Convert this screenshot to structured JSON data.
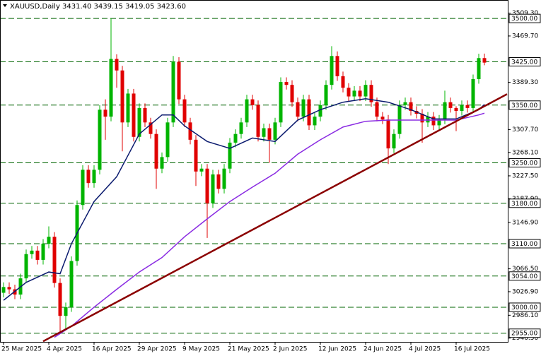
{
  "chart_data": {
    "type": "candlestick",
    "title": "XAUUSD,Daily",
    "subtitle": "3431.40 3439.15 3419.05 3423.60",
    "categories": [
      "25 Mar 2025",
      null,
      null,
      null,
      null,
      null,
      null,
      null,
      "4 Apr 2025",
      null,
      null,
      null,
      null,
      null,
      null,
      null,
      "16 Apr 2025",
      null,
      null,
      null,
      null,
      null,
      null,
      null,
      "29 Apr 2025",
      null,
      null,
      null,
      null,
      null,
      null,
      null,
      "9 May 2025",
      null,
      null,
      null,
      null,
      null,
      null,
      null,
      "21 May 2025",
      null,
      null,
      null,
      null,
      null,
      null,
      null,
      "2 Jun 2025",
      null,
      null,
      null,
      null,
      null,
      null,
      null,
      "12 Jun 2025",
      null,
      null,
      null,
      null,
      null,
      null,
      null,
      "24 Jun 2025",
      null,
      null,
      null,
      null,
      null,
      null,
      null,
      "4 Jul 2025",
      null,
      null,
      null,
      null,
      null,
      null,
      null,
      "16 Jul 2025",
      null,
      null,
      null,
      null,
      null
    ],
    "open": [
      3025,
      3035,
      3031,
      3022,
      3050,
      3092,
      3098,
      3082,
      3110,
      3122,
      3042,
      2985,
      3000,
      3080,
      3177,
      3238,
      3215,
      3238,
      3342,
      3330,
      3430,
      3410,
      3320,
      3370,
      3295,
      3345,
      3320,
      3300,
      3240,
      3260,
      3320,
      3425,
      3360,
      3320,
      3290,
      3235,
      3240,
      3180,
      3230,
      3205,
      3240,
      3285,
      3300,
      3320,
      3360,
      3350,
      3295,
      3310,
      3290,
      3320,
      3390,
      3385,
      3355,
      3330,
      3360,
      3315,
      3330,
      3350,
      3385,
      3435,
      3400,
      3380,
      3365,
      3375,
      3365,
      3385,
      3355,
      3330,
      3325,
      3275,
      3300,
      3350,
      3355,
      3340,
      3335,
      3320,
      3330,
      3315,
      3325,
      3355,
      3345,
      3340,
      3350,
      3345,
      3395,
      3431.4
    ],
    "high": [
      3043,
      3043,
      3039,
      3058,
      3100,
      3106,
      3106,
      3118,
      3140,
      3130,
      3050,
      3008,
      3088,
      3185,
      3246,
      3246,
      3246,
      3350,
      3360,
      3500,
      3438,
      3418,
      3378,
      3378,
      3353,
      3353,
      3328,
      3308,
      3268,
      3328,
      3435,
      3433,
      3368,
      3328,
      3298,
      3248,
      3248,
      3238,
      3238,
      3248,
      3293,
      3308,
      3328,
      3368,
      3368,
      3358,
      3318,
      3318,
      3328,
      3398,
      3398,
      3393,
      3363,
      3368,
      3368,
      3338,
      3358,
      3393,
      3452,
      3443,
      3408,
      3388,
      3383,
      3383,
      3393,
      3393,
      3363,
      3338,
      3333,
      3308,
      3358,
      3363,
      3363,
      3348,
      3343,
      3338,
      3338,
      3333,
      3375,
      3363,
      3348,
      3358,
      3358,
      3403,
      3439,
      3439.15
    ],
    "low": [
      3017,
      3023,
      3014,
      3014,
      3042,
      3084,
      3074,
      3074,
      3102,
      3034,
      2957,
      2960,
      2992,
      3072,
      3169,
      3207,
      3207,
      3230,
      3290,
      3322,
      3380,
      3270,
      3312,
      3287,
      3287,
      3312,
      3292,
      3205,
      3232,
      3252,
      3312,
      3352,
      3312,
      3282,
      3210,
      3227,
      3120,
      3172,
      3197,
      3197,
      3232,
      3277,
      3292,
      3312,
      3342,
      3287,
      3287,
      3250,
      3282,
      3312,
      3377,
      3347,
      3322,
      3322,
      3307,
      3307,
      3322,
      3342,
      3377,
      3392,
      3372,
      3357,
      3357,
      3357,
      3357,
      3347,
      3322,
      3317,
      3248,
      3267,
      3292,
      3342,
      3332,
      3327,
      3285,
      3312,
      3307,
      3307,
      3317,
      3337,
      3305,
      3332,
      3337,
      3337,
      3387,
      3419.05
    ],
    "close": [
      3035,
      3031,
      3022,
      3050,
      3092,
      3098,
      3082,
      3110,
      3122,
      3042,
      2985,
      3000,
      3080,
      3177,
      3238,
      3215,
      3238,
      3342,
      3330,
      3430,
      3410,
      3320,
      3370,
      3295,
      3345,
      3320,
      3300,
      3240,
      3260,
      3320,
      3425,
      3360,
      3320,
      3290,
      3235,
      3240,
      3180,
      3230,
      3205,
      3240,
      3285,
      3300,
      3320,
      3360,
      3350,
      3295,
      3310,
      3290,
      3320,
      3390,
      3385,
      3355,
      3330,
      3360,
      3315,
      3330,
      3350,
      3385,
      3435,
      3400,
      3380,
      3365,
      3375,
      3365,
      3385,
      3355,
      3330,
      3325,
      3275,
      3300,
      3350,
      3355,
      3340,
      3335,
      3320,
      3330,
      3315,
      3325,
      3355,
      3345,
      3340,
      3350,
      3345,
      3395,
      3431.4,
      3423.6
    ],
    "up_color": "#00b400",
    "down_color": "#e00000",
    "xlim": [
      -0.625,
      89.125
    ],
    "ylim": [
      2940,
      3532
    ],
    "yticks": [
      {
        "value": 3509.3,
        "label": "3509.30"
      },
      {
        "value": 3469.7,
        "label": "3469.70"
      },
      {
        "value": 3389.3,
        "label": "3389.30"
      },
      {
        "value": 3307.7,
        "label": "3307.70"
      },
      {
        "value": 3268.1,
        "label": "3268.10"
      },
      {
        "value": 3227.5,
        "label": "3227.50"
      },
      {
        "value": 3187.9,
        "label": "3187.90"
      },
      {
        "value": 3146.9,
        "label": "3146.90"
      },
      {
        "value": 3066.5,
        "label": "3066.50"
      },
      {
        "value": 3026.9,
        "label": "3026.90"
      },
      {
        "value": 2986.1,
        "label": "2986.10"
      },
      {
        "value": 2946.5,
        "label": "2946.50"
      }
    ],
    "levels": [
      {
        "value": 3500,
        "label": "3500.00"
      },
      {
        "value": 3425,
        "label": "3425.00"
      },
      {
        "value": 3350,
        "label": "3350.00"
      },
      {
        "value": 3250,
        "label": "3250.00"
      },
      {
        "value": 3180,
        "label": "3180.00"
      },
      {
        "value": 3110,
        "label": "3110.00"
      },
      {
        "value": 3054,
        "label": "3054.00"
      },
      {
        "value": 3000,
        "label": "3000.00"
      },
      {
        "value": 2955,
        "label": "2955.00"
      }
    ],
    "level_color": "#006400",
    "lines": [
      {
        "color": "#0a1a6e",
        "x": [
          0,
          4,
          8,
          10,
          12,
          16,
          20,
          24,
          28,
          30,
          32,
          36,
          40,
          44,
          48,
          52,
          56,
          60,
          64,
          68,
          72,
          76,
          80,
          84,
          85
        ],
        "values": [
          3012,
          3043,
          3061,
          3058,
          3110,
          3183,
          3226,
          3300,
          3333,
          3333,
          3314,
          3287,
          3275,
          3293,
          3287,
          3324,
          3342,
          3355,
          3361,
          3355,
          3342,
          3326,
          3326,
          3342,
          3351
        ]
      },
      {
        "color": "#8a2be2",
        "x": [
          9,
          12,
          16,
          20,
          24,
          28,
          32,
          36,
          40,
          44,
          48,
          52,
          56,
          60,
          64,
          68,
          72,
          76,
          80,
          84,
          85
        ],
        "values": [
          2948,
          2967,
          3000,
          3031,
          3061,
          3086,
          3122,
          3153,
          3183,
          3208,
          3232,
          3265,
          3290,
          3312,
          3322,
          3324,
          3324,
          3324,
          3324,
          3333,
          3336
        ]
      },
      {
        "color": "#8b0000",
        "x": [
          7,
          89
        ],
        "values": [
          2941,
          3369
        ]
      }
    ]
  }
}
